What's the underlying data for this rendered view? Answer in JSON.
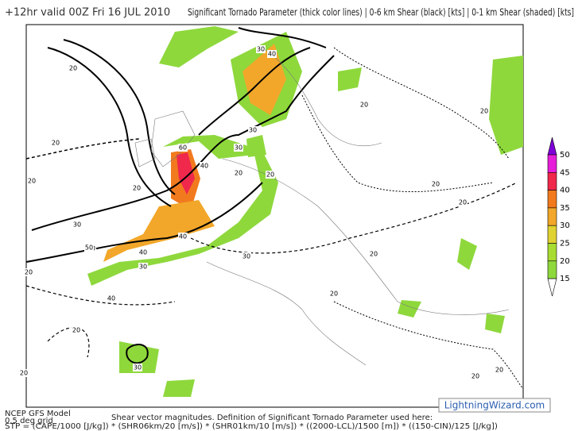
{
  "header": {
    "valid_time": "+12hr valid 00Z Fri 16 JUL 2010",
    "description": "Significant Tornado Parameter (thick color lines) | 0-6 km Shear (black) [kts] | 0-1 km Shear (shaded) [kts]"
  },
  "colorbar": {
    "labels": [
      50,
      45,
      40,
      35,
      30,
      25,
      20,
      15
    ],
    "colors": [
      "#7f00d9",
      "#e61ed9",
      "#f0284b",
      "#f27a1e",
      "#f2a72a",
      "#e0d232",
      "#a8dc32",
      "#8ed83c"
    ]
  },
  "contour_labels": [
    30,
    40,
    50,
    20,
    20,
    20,
    40,
    30,
    60,
    40,
    20,
    30,
    30,
    40,
    20,
    30,
    50,
    30,
    20,
    40,
    20,
    20,
    20,
    20,
    20,
    20,
    20,
    30,
    20,
    20,
    20,
    20
  ],
  "footer": {
    "model": "NCEP GFS Model",
    "grid": "0.5 deg grid",
    "note": "Shear vector magnitudes. Definition of Significant Tornado Parameter used here:",
    "formula": "STP = (CAPE/1000 [J/kg]) * (SHR06km/20 [m/s]) * (SHR01km/10 [m/s]) * ((2000-LCL)/1500 [m]) * ((150-CIN)/125 [J/kg])",
    "watermark": "LightningWizard.com"
  }
}
